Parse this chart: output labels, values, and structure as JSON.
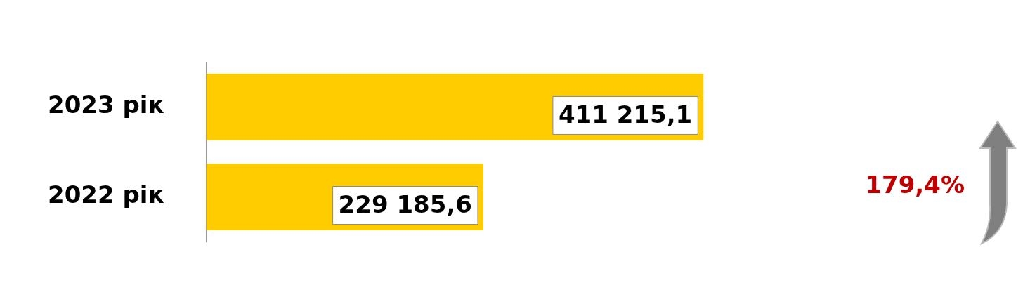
{
  "chart_data": {
    "type": "bar",
    "orientation": "horizontal",
    "categories": [
      "2023 рік",
      "2022 рік"
    ],
    "values": [
      411215.1,
      229185.6
    ],
    "color": "#ffcc00",
    "value_labels": [
      "411 215,1",
      "229 185,6"
    ],
    "annotations": [
      "179,4%"
    ],
    "grid": false,
    "legend": false
  }
}
